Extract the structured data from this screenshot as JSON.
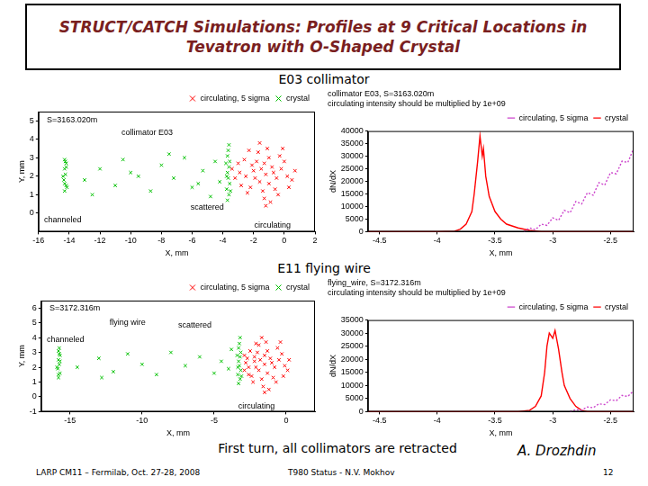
{
  "title": "STRUCT/CATCH Simulations: Profiles at 9 Critical Locations in Tevatron with O-Shaped Crystal",
  "section_labels": [
    "E03 collimator",
    "E11 flying wire"
  ],
  "chart_data": [
    {
      "type": "scatter",
      "x_label": "X, mm",
      "y_label": "Y, mm",
      "xlim": [
        -16,
        2
      ],
      "xticks": [
        -16,
        -14,
        -12,
        -10,
        -8,
        -6,
        -4,
        -2,
        0,
        2
      ],
      "ylim": [
        -1,
        5.5
      ],
      "yticks": [
        0,
        1,
        2,
        3,
        4,
        5
      ],
      "grid": false,
      "legend": "top right",
      "annotations": [
        "S=3163.020m",
        "collimator E03",
        "channeled",
        "scattered",
        "circulating"
      ],
      "series": [
        {
          "name": "circulating, 5 sigma",
          "color": "#ff0000",
          "marker": "x",
          "x": [
            -1.2,
            -0.8,
            -1.6,
            -0.5,
            -2.0,
            -1.0,
            -1.4,
            -0.2,
            -2.5,
            -1.8,
            -0.6,
            0.2,
            -2.9,
            -1.1,
            -1.3,
            -2.2,
            -0.3,
            0.5,
            -3.2,
            -1.7,
            -0.9,
            -2.6,
            -2.4,
            0,
            -1.5,
            -1.9,
            -0.7,
            -1.3,
            -2.1,
            -1.0,
            -3.4,
            0.7,
            -0.4,
            -2.8,
            -1.6,
            -1.2,
            -2.3,
            0.3,
            -0.1,
            -3.0
          ],
          "y": [
            2.1,
            2.5,
            1.7,
            1.9,
            2.3,
            3.0,
            1.2,
            2.4,
            2.0,
            2.8,
            1.3,
            2.0,
            2.2,
            3.5,
            0.8,
            1.4,
            3.1,
            1.8,
            1.9,
            3.3,
            0.6,
            2.9,
            1.1,
            2.8,
            2.4,
            1.9,
            2.2,
            2.7,
            2.6,
            1.6,
            2.4,
            2.3,
            1.0,
            1.5,
            3.8,
            0.4,
            3.4,
            1.4,
            3.5,
            2.7
          ]
        },
        {
          "name": "crystal",
          "color": "#00c000",
          "marker": "x",
          "x": [
            -14.3,
            -14.2,
            -14.35,
            -14.25,
            -14.3,
            -14.2,
            -14.3,
            -14.15,
            -14.4,
            -14.2,
            -14.3,
            -14.25,
            -13,
            -12,
            -11,
            -10.5,
            -9.5,
            -8.7,
            -8,
            -7.2,
            -6.5,
            -6,
            -5.3,
            -4.8,
            -4.5,
            -4.2,
            -12.5,
            -7.5,
            -10,
            -5.6,
            -3.7,
            -3.6,
            -3.75,
            -3.55,
            -3.65,
            -3.7,
            -3.6,
            -3.55,
            -3.7,
            -3.65,
            -3.6,
            -3.75,
            -3.5,
            -3.8
          ],
          "y": [
            1.2,
            1.5,
            1.8,
            2.1,
            2.4,
            2.7,
            2.9,
            1.4,
            2.0,
            2.5,
            1.6,
            2.8,
            1.8,
            2.4,
            1.5,
            2.9,
            2.0,
            1.2,
            2.6,
            1.9,
            3.0,
            1.4,
            2.3,
            0.9,
            2.8,
            1.7,
            1.0,
            3.2,
            2.2,
            1.6,
            0.7,
            1.0,
            1.3,
            1.6,
            1.9,
            2.2,
            2.5,
            2.8,
            3.1,
            3.4,
            3.7,
            2.0,
            1.2,
            2.7
          ]
        }
      ]
    },
    {
      "type": "line",
      "x_label": "X, mm",
      "y_label": "dN/dX",
      "xlim": [
        -4.6,
        -2.3
      ],
      "xticks": [
        -4.5,
        -4,
        -3.5,
        -3,
        -2.5
      ],
      "ylim": [
        0,
        40000
      ],
      "yticks": [
        0,
        5000,
        10000,
        15000,
        20000,
        25000,
        30000,
        35000,
        40000
      ],
      "grid": false,
      "legend": "top right",
      "annotations": [
        "collimator E03, S=3163.020m",
        "circulating intensity should be multiplied by 1e+09"
      ],
      "series": [
        {
          "name": "circulating, 5 sigma",
          "color": "#cc44cc",
          "line_style": "dotted",
          "x": [
            -3.25,
            -3.2,
            -3.15,
            -3.1,
            -3.05,
            -3.0,
            -2.95,
            -2.9,
            -2.85,
            -2.8,
            -2.75,
            -2.7,
            -2.65,
            -2.6,
            -2.55,
            -2.5,
            -2.45,
            -2.4,
            -2.35,
            -2.3
          ],
          "values": [
            0,
            1500,
            800,
            3000,
            2500,
            5500,
            4500,
            8500,
            7500,
            12000,
            11000,
            15500,
            14500,
            19500,
            18500,
            23500,
            23000,
            28000,
            27500,
            33000
          ]
        },
        {
          "name": "crystal",
          "color": "#ff0000",
          "line_style": "solid",
          "x": [
            -4.6,
            -4.0,
            -3.85,
            -3.8,
            -3.75,
            -3.7,
            -3.68,
            -3.65,
            -3.63,
            -3.61,
            -3.6,
            -3.58,
            -3.55,
            -3.5,
            -3.45,
            -3.4,
            -3.3,
            -3.2,
            -3.1,
            -2.3
          ],
          "values": [
            0,
            0,
            200,
            1000,
            3000,
            8000,
            15000,
            28000,
            38000,
            30000,
            33000,
            22000,
            14000,
            8000,
            5000,
            3000,
            1500,
            500,
            0,
            0
          ]
        }
      ]
    },
    {
      "type": "scatter",
      "x_label": "X, mm",
      "y_label": "Y, mm",
      "xlim": [
        -17,
        2
      ],
      "xticks": [
        -15,
        -10,
        -5,
        0
      ],
      "ylim": [
        -1,
        6.5
      ],
      "yticks": [
        -1,
        0,
        1,
        2,
        3,
        4,
        5,
        6
      ],
      "grid": false,
      "legend": "top right",
      "annotations": [
        "S=3172.316m",
        "flying wire",
        "channeled",
        "scattered",
        "circulating"
      ],
      "series": [
        {
          "name": "circulating, 5 sigma",
          "color": "#ff0000",
          "marker": "x",
          "x": [
            -1.5,
            -1.1,
            -1.9,
            -0.8,
            -2.2,
            -1.3,
            -1.7,
            -0.5,
            -2.6,
            -2.0,
            -0.9,
            -0.1,
            -2.8,
            -1.4,
            -1.6,
            -2.4,
            -0.6,
            0.1,
            -2.9,
            -1.9,
            -1.2,
            -2.5,
            -2.3,
            -0.3,
            -1.8,
            -2.1,
            -1.0,
            -1.5,
            -2.2,
            -1.3,
            -2.7,
            0.2,
            -0.7,
            -2.6,
            -1.7,
            -1.5,
            -2.1,
            -0.2,
            -0.4,
            -2.9
          ],
          "y": [
            2.2,
            2.6,
            1.8,
            2.0,
            2.4,
            3.1,
            1.2,
            2.5,
            2.0,
            3.0,
            1.3,
            2.1,
            2.3,
            3.7,
            0.7,
            1.4,
            3.3,
            1.8,
            1.8,
            3.5,
            0.5,
            3.1,
            1.0,
            2.9,
            2.5,
            2.0,
            2.3,
            2.8,
            2.7,
            1.6,
            2.6,
            2.5,
            1.0,
            1.5,
            4.0,
            0.3,
            3.6,
            1.4,
            3.7,
            2.8
          ]
        },
        {
          "name": "crystal",
          "color": "#00c000",
          "marker": "x",
          "x": [
            -15.8,
            -15.7,
            -15.85,
            -15.75,
            -15.8,
            -15.7,
            -15.8,
            -15.75,
            -15.9,
            -15.7,
            -15.8,
            -15.75,
            -14.5,
            -13,
            -12,
            -11,
            -10,
            -9,
            -8,
            -7,
            -6,
            -5,
            -4.5,
            -4,
            -3.8,
            -12.8,
            -3.3,
            -3.2,
            -3.35,
            -3.15,
            -3.25,
            -3.3,
            -3.2,
            -3.15,
            -3.3,
            -3.25,
            -3.2,
            -3.35,
            -3.1,
            -3.4
          ],
          "y": [
            1.3,
            1.6,
            1.9,
            2.2,
            2.5,
            2.8,
            3.1,
            3.3,
            2.0,
            2.4,
            1.5,
            2.9,
            2.0,
            2.6,
            1.7,
            2.9,
            2.2,
            1.5,
            3.0,
            2.1,
            2.7,
            1.6,
            2.4,
            1.9,
            3.2,
            1.3,
            0.9,
            1.2,
            1.5,
            1.8,
            2.1,
            2.4,
            2.7,
            3.0,
            3.3,
            3.6,
            4.0,
            2.0,
            1.4,
            2.8
          ]
        }
      ]
    },
    {
      "type": "line",
      "x_label": "X, mm",
      "y_label": "dN/dX",
      "xlim": [
        -4.6,
        -2.3
      ],
      "xticks": [
        -4.5,
        -4,
        -3.5,
        -3,
        -2.5
      ],
      "ylim": [
        0,
        35000
      ],
      "yticks": [
        0,
        5000,
        10000,
        15000,
        20000,
        25000,
        30000,
        35000
      ],
      "grid": false,
      "legend": "top right",
      "annotations": [
        "flying_wire, S=3172.316m",
        "circulating intensity should be multiplied by 1e+09"
      ],
      "series": [
        {
          "name": "circulating, 5 sigma",
          "color": "#cc44cc",
          "line_style": "dotted",
          "x": [
            -2.85,
            -2.8,
            -2.75,
            -2.7,
            -2.65,
            -2.6,
            -2.55,
            -2.5,
            -2.45,
            -2.4,
            -2.35,
            -2.3
          ],
          "values": [
            0,
            800,
            600,
            1800,
            1500,
            3000,
            2700,
            4500,
            4200,
            6200,
            5800,
            8000
          ]
        },
        {
          "name": "crystal",
          "color": "#ff0000",
          "line_style": "solid",
          "x": [
            -4.6,
            -3.3,
            -3.2,
            -3.15,
            -3.1,
            -3.07,
            -3.05,
            -3.03,
            -3.0,
            -2.98,
            -2.95,
            -2.92,
            -2.9,
            -2.85,
            -2.8,
            -2.75,
            -2.7,
            -2.3
          ],
          "values": [
            0,
            0,
            500,
            2000,
            6000,
            15000,
            25000,
            30000,
            28000,
            31000,
            24000,
            15000,
            10000,
            5000,
            2000,
            500,
            0,
            0
          ]
        }
      ]
    }
  ],
  "footnote": "First turn, all collimators are retracted",
  "author": "A. Drozhdin",
  "event": "LARP CM11 – Fermilab, Oct. 27-28, 2008",
  "talk": "T980 Status - N.V. Mokhov",
  "page": 12
}
